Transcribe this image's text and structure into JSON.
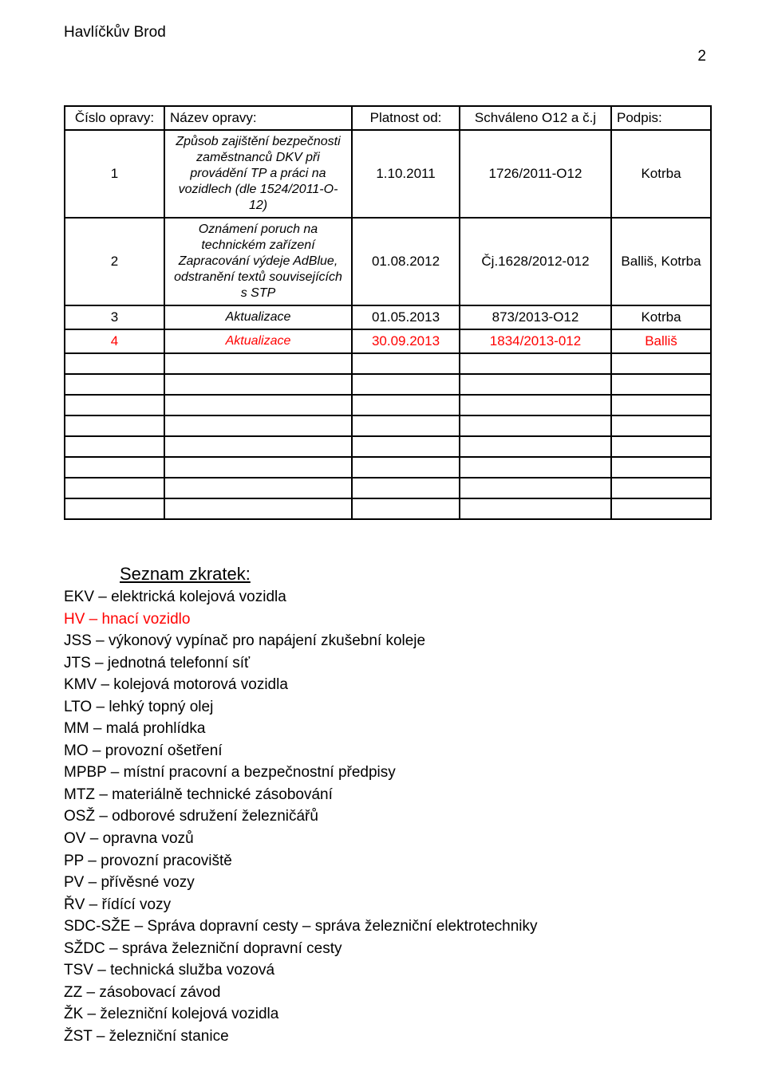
{
  "header": {
    "title": "Havlíčkův Brod",
    "page_number": "2"
  },
  "table": {
    "headers": [
      "Číslo opravy:",
      "Název opravy:",
      "Platnost od:",
      "Schváleno O12 a č.j",
      "Podpis:"
    ],
    "rows": [
      {
        "num": "1",
        "desc": "Způsob zajištění bezpečnosti zaměstnanců DKV při provádění TP a práci na vozidlech (dle 1524/2011-O-12)",
        "date": "1.10.2011",
        "approved": "1726/2011-O12",
        "sig": "Kotrba",
        "red": false
      },
      {
        "num": "2",
        "desc": "Oznámení poruch na technickém zařízení Zapracování výdeje AdBlue, odstranění textů souvisejících s STP",
        "date": "01.08.2012",
        "approved": "Čj.1628/2012-012",
        "sig": "Balliš, Kotrba",
        "red": false
      },
      {
        "num": "3",
        "desc": "Aktualizace",
        "date": "01.05.2013",
        "approved": "873/2013-O12",
        "sig": "Kotrba",
        "red": false
      },
      {
        "num": "4",
        "desc": "Aktualizace",
        "date": "30.09.2013",
        "approved": "1834/2013-012",
        "sig": "Balliš",
        "red": true
      }
    ],
    "empty_rows": 8
  },
  "abbrev": {
    "title": "Seznam zkratek:",
    "items": [
      {
        "text": "EKV – elektrická kolejová vozidla",
        "red": false
      },
      {
        "text": "HV – hnací vozidlo",
        "red": true
      },
      {
        "text": "JSS – výkonový vypínač pro napájení zkušební koleje",
        "red": false
      },
      {
        "text": "JTS – jednotná telefonní síť",
        "red": false
      },
      {
        "text": "KMV – kolejová motorová vozidla",
        "red": false
      },
      {
        "text": "LTO – lehký topný olej",
        "red": false
      },
      {
        "text": "MM – malá prohlídka",
        "red": false
      },
      {
        "text": "MO – provozní ošetření",
        "red": false
      },
      {
        "text": "MPBP – místní pracovní a bezpečnostní předpisy",
        "red": false
      },
      {
        "text": "MTZ – materiálně technické zásobování",
        "red": false
      },
      {
        "text": "OSŽ – odborové sdružení železničářů",
        "red": false
      },
      {
        "text": "OV – opravna vozů",
        "red": false
      },
      {
        "text": "PP – provozní pracoviště",
        "red": false
      },
      {
        "text": "PV – přívěsné vozy",
        "red": false
      },
      {
        "text": "ŘV – řídící vozy",
        "red": false
      },
      {
        "text": "SDC-SŽE – Správa dopravní cesty – správa železniční elektrotechniky",
        "red": false
      },
      {
        "text": "SŽDC – správa železniční dopravní cesty",
        "red": false
      },
      {
        "text": "TSV – technická služba vozová",
        "red": false
      },
      {
        "text": "ZZ – zásobovací závod",
        "red": false
      },
      {
        "text": "ŽK – železniční kolejová vozidla",
        "red": false
      },
      {
        "text": "ŽST – železniční stanice",
        "red": false
      }
    ]
  }
}
